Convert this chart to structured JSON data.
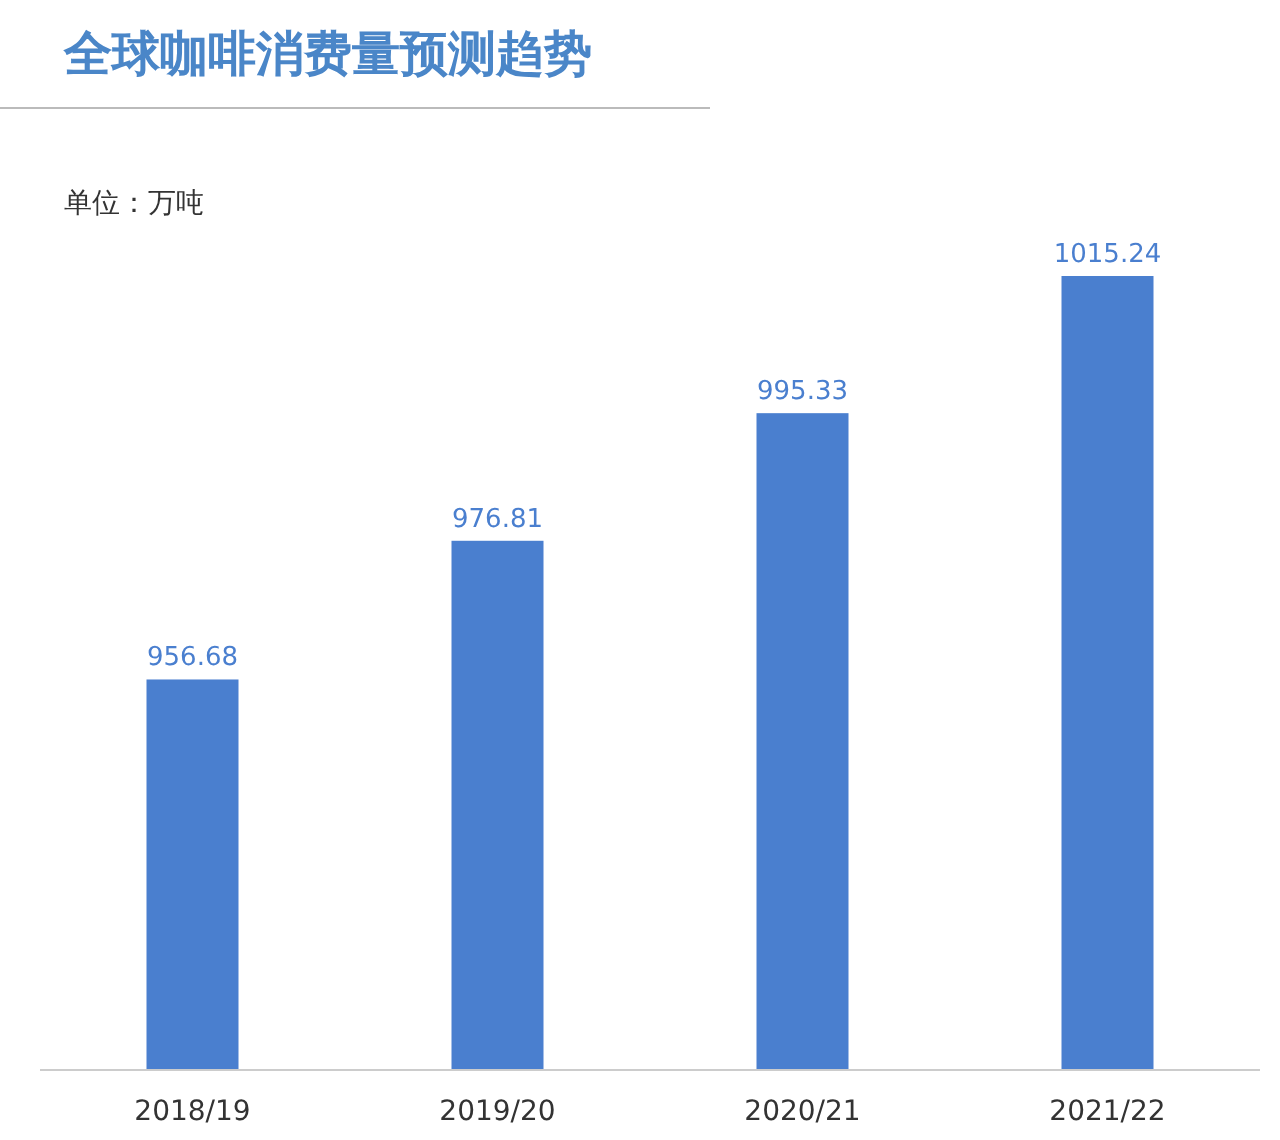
{
  "chart_data": {
    "type": "bar",
    "title": "全球咖啡消费量预测趋势",
    "annotations": [
      "单位：万吨"
    ],
    "categories": [
      "2018/19",
      "2019/20",
      "2020/21",
      "2021/22"
    ],
    "values": [
      956.68,
      976.81,
      995.33,
      1015.24
    ],
    "color": "#4a7fcf",
    "ylim": [
      900,
      1015.24
    ],
    "data_labels": true
  }
}
